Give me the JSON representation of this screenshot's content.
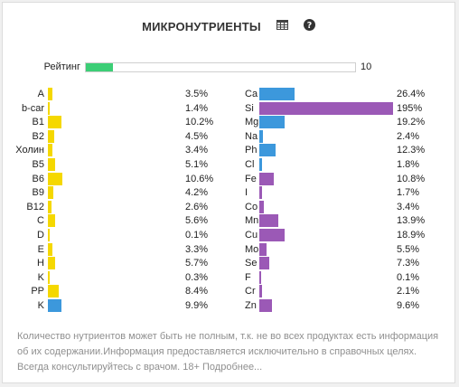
{
  "header": {
    "title": "МИКРОНУТРИЕНТЫ",
    "icons": [
      "table-icon",
      "help-icon"
    ]
  },
  "rating": {
    "label": "Рейтинг",
    "value": "10",
    "fraction": 0.1,
    "color": "#3cce76"
  },
  "colors": {
    "yellow": "#f5d800",
    "blue": "#3c98dc",
    "purple": "#9b59b6"
  },
  "vitamins": [
    {
      "name": "A",
      "value": "3.5%",
      "percent": 3.5,
      "color": "#f5d800"
    },
    {
      "name": "b-car",
      "value": "1.4%",
      "percent": 1.4,
      "color": "#f5d800"
    },
    {
      "name": "B1",
      "value": "10.2%",
      "percent": 10.2,
      "color": "#f5d800"
    },
    {
      "name": "B2",
      "value": "4.5%",
      "percent": 4.5,
      "color": "#f5d800"
    },
    {
      "name": "Холин",
      "value": "3.4%",
      "percent": 3.4,
      "color": "#f5d800"
    },
    {
      "name": "B5",
      "value": "5.1%",
      "percent": 5.1,
      "color": "#f5d800"
    },
    {
      "name": "B6",
      "value": "10.6%",
      "percent": 10.6,
      "color": "#f5d800"
    },
    {
      "name": "B9",
      "value": "4.2%",
      "percent": 4.2,
      "color": "#f5d800"
    },
    {
      "name": "B12",
      "value": "2.6%",
      "percent": 2.6,
      "color": "#f5d800"
    },
    {
      "name": "C",
      "value": "5.6%",
      "percent": 5.6,
      "color": "#f5d800"
    },
    {
      "name": "D",
      "value": "0.1%",
      "percent": 0.1,
      "color": "#f5d800"
    },
    {
      "name": "E",
      "value": "3.3%",
      "percent": 3.3,
      "color": "#f5d800"
    },
    {
      "name": "H",
      "value": "5.7%",
      "percent": 5.7,
      "color": "#f5d800"
    },
    {
      "name": "K",
      "value": "0.3%",
      "percent": 0.3,
      "color": "#f5d800"
    },
    {
      "name": "PP",
      "value": "8.4%",
      "percent": 8.4,
      "color": "#f5d800"
    },
    {
      "name": "K",
      "value": "9.9%",
      "percent": 9.9,
      "color": "#3c98dc"
    }
  ],
  "minerals": [
    {
      "name": "Ca",
      "value": "26.4%",
      "percent": 26.4,
      "color": "#3c98dc"
    },
    {
      "name": "Si",
      "value": "195%",
      "percent": 195,
      "color": "#9b59b6"
    },
    {
      "name": "Mg",
      "value": "19.2%",
      "percent": 19.2,
      "color": "#3c98dc"
    },
    {
      "name": "Na",
      "value": "2.4%",
      "percent": 2.4,
      "color": "#3c98dc"
    },
    {
      "name": "Ph",
      "value": "12.3%",
      "percent": 12.3,
      "color": "#3c98dc"
    },
    {
      "name": "Cl",
      "value": "1.8%",
      "percent": 1.8,
      "color": "#3c98dc"
    },
    {
      "name": "Fe",
      "value": "10.8%",
      "percent": 10.8,
      "color": "#9b59b6"
    },
    {
      "name": "I",
      "value": "1.7%",
      "percent": 1.7,
      "color": "#9b59b6"
    },
    {
      "name": "Co",
      "value": "3.4%",
      "percent": 3.4,
      "color": "#9b59b6"
    },
    {
      "name": "Mn",
      "value": "13.9%",
      "percent": 13.9,
      "color": "#9b59b6"
    },
    {
      "name": "Cu",
      "value": "18.9%",
      "percent": 18.9,
      "color": "#9b59b6"
    },
    {
      "name": "Mo",
      "value": "5.5%",
      "percent": 5.5,
      "color": "#9b59b6"
    },
    {
      "name": "Se",
      "value": "7.3%",
      "percent": 7.3,
      "color": "#9b59b6"
    },
    {
      "name": "F",
      "value": "0.1%",
      "percent": 0.1,
      "color": "#9b59b6"
    },
    {
      "name": "Cr",
      "value": "2.1%",
      "percent": 2.1,
      "color": "#9b59b6"
    },
    {
      "name": "Zn",
      "value": "9.6%",
      "percent": 9.6,
      "color": "#9b59b6"
    }
  ],
  "footer": {
    "text": "Количество нутриентов может быть не полным, т.к. не во всех продуктах есть информация об их содержании.Информация предоставляется исключительно в справочных целях. Всегда консультируйтесь с врачом. 18+ ",
    "link": "Подробнее..."
  }
}
